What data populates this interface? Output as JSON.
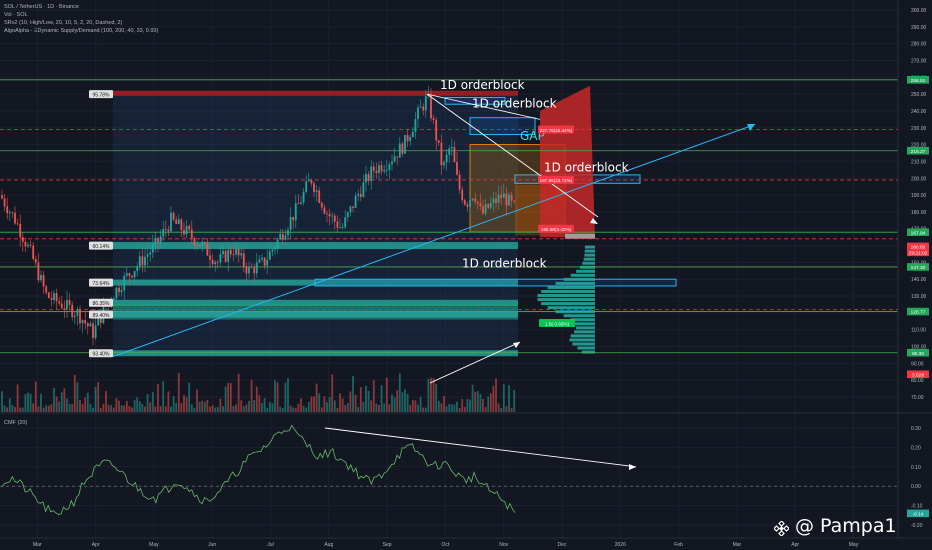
{
  "header": {
    "symbol": "SOL / TetherUS · 1D · Binance",
    "vol": "Vol · SOL",
    "srv2": "SRv2 (10, High/Low, 20, 10, 5, 2, 20, Dashed, 2)",
    "algo": "AlgoAlpha - ΞDynamic Supply/Demand (100, 200, 40, 33, 0.93)"
  },
  "watermark": "@ Pampa1",
  "chart_data": {
    "type": "candlestick",
    "title": "SOL / TetherUS · 1D · Binance",
    "price_axis": {
      "range": [
        60,
        310
      ],
      "ticks": [
        300,
        290,
        280,
        270,
        260,
        250,
        240,
        230,
        220,
        210,
        200,
        190,
        180,
        170,
        160,
        150,
        140,
        130,
        120,
        110,
        100,
        90,
        80,
        70
      ]
    },
    "time_axis": {
      "ticks": [
        "Mar",
        "Apr",
        "May",
        "Jun",
        "Jul",
        "Aug",
        "Sep",
        "Oct",
        "Nov",
        "Dec",
        "2026",
        "Feb",
        "Mar",
        "Apr",
        "May"
      ],
      "data_range": [
        "Feb",
        "Nov"
      ]
    },
    "price_path": [
      {
        "t": 0.0,
        "p": 190
      },
      {
        "t": 0.3,
        "p": 175
      },
      {
        "t": 0.6,
        "p": 155
      },
      {
        "t": 0.9,
        "p": 130
      },
      {
        "t": 1.2,
        "p": 125
      },
      {
        "t": 1.5,
        "p": 120
      },
      {
        "t": 1.8,
        "p": 108
      },
      {
        "t": 2.1,
        "p": 128
      },
      {
        "t": 2.4,
        "p": 140
      },
      {
        "t": 2.7,
        "p": 150
      },
      {
        "t": 3.0,
        "p": 160
      },
      {
        "t": 3.3,
        "p": 175
      },
      {
        "t": 3.6,
        "p": 168
      },
      {
        "t": 3.9,
        "p": 160
      },
      {
        "t": 4.2,
        "p": 150
      },
      {
        "t": 4.5,
        "p": 158
      },
      {
        "t": 4.8,
        "p": 145
      },
      {
        "t": 5.1,
        "p": 150
      },
      {
        "t": 5.4,
        "p": 165
      },
      {
        "t": 5.7,
        "p": 180
      },
      {
        "t": 6.0,
        "p": 200
      },
      {
        "t": 6.3,
        "p": 180
      },
      {
        "t": 6.6,
        "p": 170
      },
      {
        "t": 6.9,
        "p": 190
      },
      {
        "t": 7.2,
        "p": 205
      },
      {
        "t": 7.5,
        "p": 210
      },
      {
        "t": 7.8,
        "p": 220
      },
      {
        "t": 8.1,
        "p": 240
      },
      {
        "t": 8.25,
        "p": 248
      },
      {
        "t": 8.4,
        "p": 228
      },
      {
        "t": 8.55,
        "p": 205
      },
      {
        "t": 8.7,
        "p": 220
      },
      {
        "t": 8.85,
        "p": 195
      },
      {
        "t": 9.0,
        "p": 185
      },
      {
        "t": 9.15,
        "p": 192
      },
      {
        "t": 9.3,
        "p": 178
      },
      {
        "t": 9.4,
        "p": 182
      },
      {
        "t": 9.55,
        "p": 186
      },
      {
        "t": 9.7,
        "p": 190
      },
      {
        "t": 9.85,
        "p": 185
      },
      {
        "t": 10.0,
        "p": 180
      }
    ],
    "volume_profile_note": "volume bars along bottom; volume profile histogram at right edge",
    "levels": [
      {
        "price": 258.51,
        "label": "258.51",
        "style": "solid",
        "color": "#4caf50"
      },
      {
        "price": 229.0,
        "style": "dashed",
        "color": "#e53935"
      },
      {
        "price": 216.37,
        "label": "216.37",
        "style": "solid",
        "color": "#4caf50"
      },
      {
        "price": 199.0,
        "style": "dashed",
        "color": "#e53935"
      },
      {
        "price": 167.94,
        "label": "167.94",
        "style": "solid",
        "color": "#4caf50"
      },
      {
        "price": 164.0,
        "style": "dashed",
        "color": "#e53935"
      },
      {
        "price": 147.3,
        "label": "147.30",
        "style": "solid",
        "color": "#4caf50"
      },
      {
        "price": 122.0,
        "style": "dashed",
        "color": "#e53935"
      },
      {
        "price": 120.77,
        "label": "120.77",
        "style": "solid",
        "color": "#4caf50"
      },
      {
        "price": 96.3,
        "label": "96.30",
        "style": "solid",
        "color": "#4caf50"
      }
    ],
    "price_tags": [
      {
        "price": 258.51,
        "text": "258.51",
        "color": "#26a65b"
      },
      {
        "price": 216.37,
        "text": "216.37",
        "color": "#26a65b"
      },
      {
        "price": 167.94,
        "text": "167.94",
        "color": "#26a65b"
      },
      {
        "price": 159.5,
        "text": "160.02",
        "color": "#f23645"
      },
      {
        "price": 156.0,
        "text": "29:21:02",
        "color": "#f23645"
      },
      {
        "price": 147.3,
        "text": "147.30",
        "color": "#26a65b"
      },
      {
        "price": 120.77,
        "text": "120.77",
        "color": "#26a65b"
      },
      {
        "price": 96.3,
        "text": "96.30",
        "color": "#26a65b"
      },
      {
        "price": 83.5,
        "text": "3.528",
        "color": "#f23645"
      }
    ],
    "fib_levels": [
      {
        "price": 250,
        "label": "95.78%"
      },
      {
        "price": 160,
        "label": "60.14%"
      },
      {
        "price": 138,
        "label": "73.64%"
      },
      {
        "price": 126,
        "label": "86.35%"
      },
      {
        "price": 119,
        "label": "89.40%"
      },
      {
        "price": 96,
        "label": "93.40%"
      }
    ],
    "annotations": [
      {
        "text": "1D orderblock",
        "price": 253
      },
      {
        "text": "1D orderblock",
        "price": 242
      },
      {
        "text": "GAP",
        "price": 225
      },
      {
        "text": "1D orderblock",
        "price": 204
      },
      {
        "text": "1D orderblock",
        "price": 147
      },
      {
        "text": "227.76(42.44%)",
        "price": 229
      },
      {
        "text": "197.86(23.72%)",
        "price": 199
      },
      {
        "text": "165.98(3.43%)",
        "price": 170
      },
      {
        "text": "1.5(-3.65%)",
        "price": 114
      }
    ],
    "indicator": {
      "name": "CMF (20)",
      "range": [
        -0.3,
        0.35
      ],
      "ticks": [
        0.3,
        0.2,
        0.1,
        0.0,
        -0.1,
        -0.2
      ],
      "last_value": "-0.14",
      "values": [
        0.02,
        0.04,
        0.0,
        -0.05,
        -0.1,
        -0.15,
        -0.12,
        -0.08,
        0.02,
        0.08,
        0.12,
        0.1,
        0.05,
        0.0,
        -0.04,
        -0.06,
        -0.02,
        0.03,
        0.0,
        -0.05,
        -0.08,
        -0.03,
        0.02,
        0.08,
        0.14,
        0.18,
        0.22,
        0.28,
        0.31,
        0.25,
        0.2,
        0.15,
        0.18,
        0.14,
        0.1,
        0.05,
        0.02,
        0.06,
        0.12,
        0.18,
        0.2,
        0.15,
        0.1,
        0.12,
        0.08,
        0.03,
        0.05,
        0.0,
        -0.04,
        -0.08,
        -0.14
      ]
    }
  }
}
